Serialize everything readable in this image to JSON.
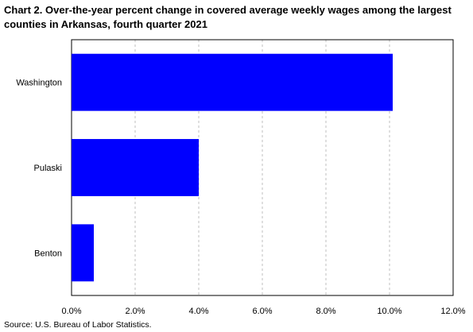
{
  "chart_data": {
    "type": "bar",
    "orientation": "horizontal",
    "title": "Chart 2. Over-the-year percent change in covered average weekly wages among the largest counties in Arkansas, fourth quarter 2021",
    "categories": [
      "Washington",
      "Pulaski",
      "Benton"
    ],
    "values": [
      10.1,
      4.0,
      0.7
    ],
    "xlim": [
      0,
      12
    ],
    "x_ticks": [
      0,
      2,
      4,
      6,
      8,
      10,
      12
    ],
    "x_tick_labels": [
      "0.0%",
      "2.0%",
      "4.0%",
      "6.0%",
      "8.0%",
      "10.0%",
      "12.0%"
    ],
    "xlabel": "",
    "ylabel": "",
    "grid": "vertical dashed",
    "legend": "none",
    "bar_color": "#0000FF",
    "source": "Source: U.S. Bureau of Labor Statistics."
  }
}
